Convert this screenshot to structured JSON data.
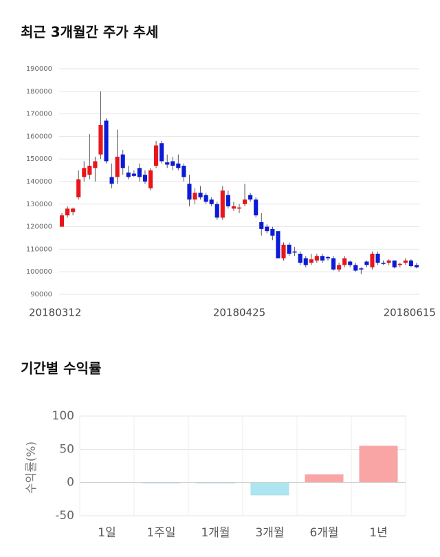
{
  "chart_data": [
    {
      "type": "candlestick",
      "title": "최근 3개월간 주가 추세",
      "categories": [
        "20180312",
        null,
        null,
        null,
        null,
        null,
        null,
        null,
        null,
        null,
        null,
        null,
        null,
        null,
        null,
        null,
        null,
        null,
        null,
        null,
        null,
        null,
        null,
        null,
        null,
        null,
        null,
        null,
        null,
        null,
        null,
        null,
        "20180425",
        null,
        null,
        null,
        null,
        null,
        null,
        null,
        null,
        null,
        null,
        null,
        null,
        null,
        null,
        null,
        null,
        null,
        null,
        null,
        null,
        null,
        null,
        null,
        null,
        null,
        null,
        null,
        null,
        null,
        null,
        null,
        "20180615"
      ],
      "open": [
        120000,
        125000,
        126500,
        133000,
        142000,
        143000,
        146000,
        152000,
        167000,
        142000,
        142000,
        152000,
        144000,
        143500,
        146000,
        143000,
        137000,
        147000,
        157000,
        148500,
        149000,
        148000,
        147000,
        139000,
        132000,
        135000,
        134000,
        132000,
        130000,
        124000,
        134000,
        128000,
        128000,
        130000,
        134000,
        132000,
        122000,
        120000,
        119000,
        118000,
        106000,
        112000,
        109000,
        108000,
        106000,
        104000,
        105000,
        107000,
        106500,
        106000,
        101000,
        103000,
        104500,
        103000,
        101500,
        104500,
        102000,
        108000,
        104000,
        104000,
        105000,
        103000,
        104000,
        105000,
        103000
      ],
      "high": [
        126000,
        129000,
        128500,
        145000,
        149000,
        161000,
        151000,
        180000,
        168000,
        148000,
        163000,
        154000,
        147000,
        145000,
        148000,
        145000,
        146000,
        158000,
        158000,
        152000,
        151000,
        152000,
        148000,
        143000,
        137000,
        138000,
        135000,
        133000,
        131000,
        138000,
        136000,
        131000,
        130000,
        139000,
        135000,
        133000,
        126000,
        121000,
        120000,
        118000,
        113000,
        113000,
        111000,
        109000,
        107000,
        108000,
        108000,
        108000,
        107000,
        107000,
        104000,
        107000,
        105000,
        104000,
        102000,
        105000,
        109000,
        109000,
        105000,
        105500,
        105000,
        104000,
        106000,
        105500,
        104000
      ],
      "low": [
        120000,
        124000,
        125000,
        132000,
        140000,
        141000,
        140000,
        150000,
        148000,
        137000,
        139000,
        143000,
        141000,
        142000,
        140000,
        139000,
        136000,
        146000,
        148000,
        146000,
        145000,
        145000,
        140000,
        129000,
        130000,
        132000,
        130000,
        129000,
        123000,
        123000,
        128000,
        127000,
        126000,
        129000,
        131000,
        124000,
        116000,
        117000,
        114000,
        106000,
        105000,
        107000,
        107000,
        103000,
        102000,
        103000,
        104000,
        104000,
        105000,
        100500,
        100000,
        102000,
        102000,
        100000,
        99000,
        102000,
        101000,
        103000,
        103000,
        103000,
        101500,
        102000,
        103000,
        102000,
        101500
      ],
      "close": [
        125000,
        128000,
        128000,
        141000,
        146000,
        147000,
        149000,
        165000,
        149000,
        139000,
        151000,
        146000,
        142000,
        142500,
        142000,
        140000,
        145000,
        156000,
        149000,
        147500,
        147000,
        146000,
        142000,
        132000,
        135000,
        133000,
        131000,
        130000,
        124000,
        136000,
        129000,
        129000,
        128500,
        132000,
        132000,
        125000,
        119000,
        118000,
        116000,
        106000,
        112000,
        108000,
        108500,
        104000,
        103000,
        105500,
        107000,
        105000,
        106000,
        101000,
        103000,
        106000,
        103000,
        100500,
        101000,
        103000,
        108000,
        104000,
        103500,
        105000,
        102000,
        103500,
        105000,
        102500,
        102000
      ],
      "up_color": "#e8161b",
      "down_color": "#0b1bd6",
      "ylim": [
        90000,
        190000
      ],
      "yticks": [
        90000,
        100000,
        110000,
        120000,
        130000,
        140000,
        150000,
        160000,
        170000,
        180000,
        190000
      ],
      "grid": true
    },
    {
      "type": "bar",
      "title": "기간별 수익률",
      "y_label": "수익률(%)",
      "categories": [
        "1일",
        "1주일",
        "1개월",
        "3개월",
        "6개월",
        "1년"
      ],
      "values": [
        0,
        -1,
        -1,
        -19,
        12,
        55
      ],
      "positive_color": "#f9a5a5",
      "negative_color": "#ade6f0",
      "ylim": [
        -50,
        100
      ],
      "yticks": [
        -50,
        0,
        50,
        100
      ],
      "grid": true
    }
  ]
}
